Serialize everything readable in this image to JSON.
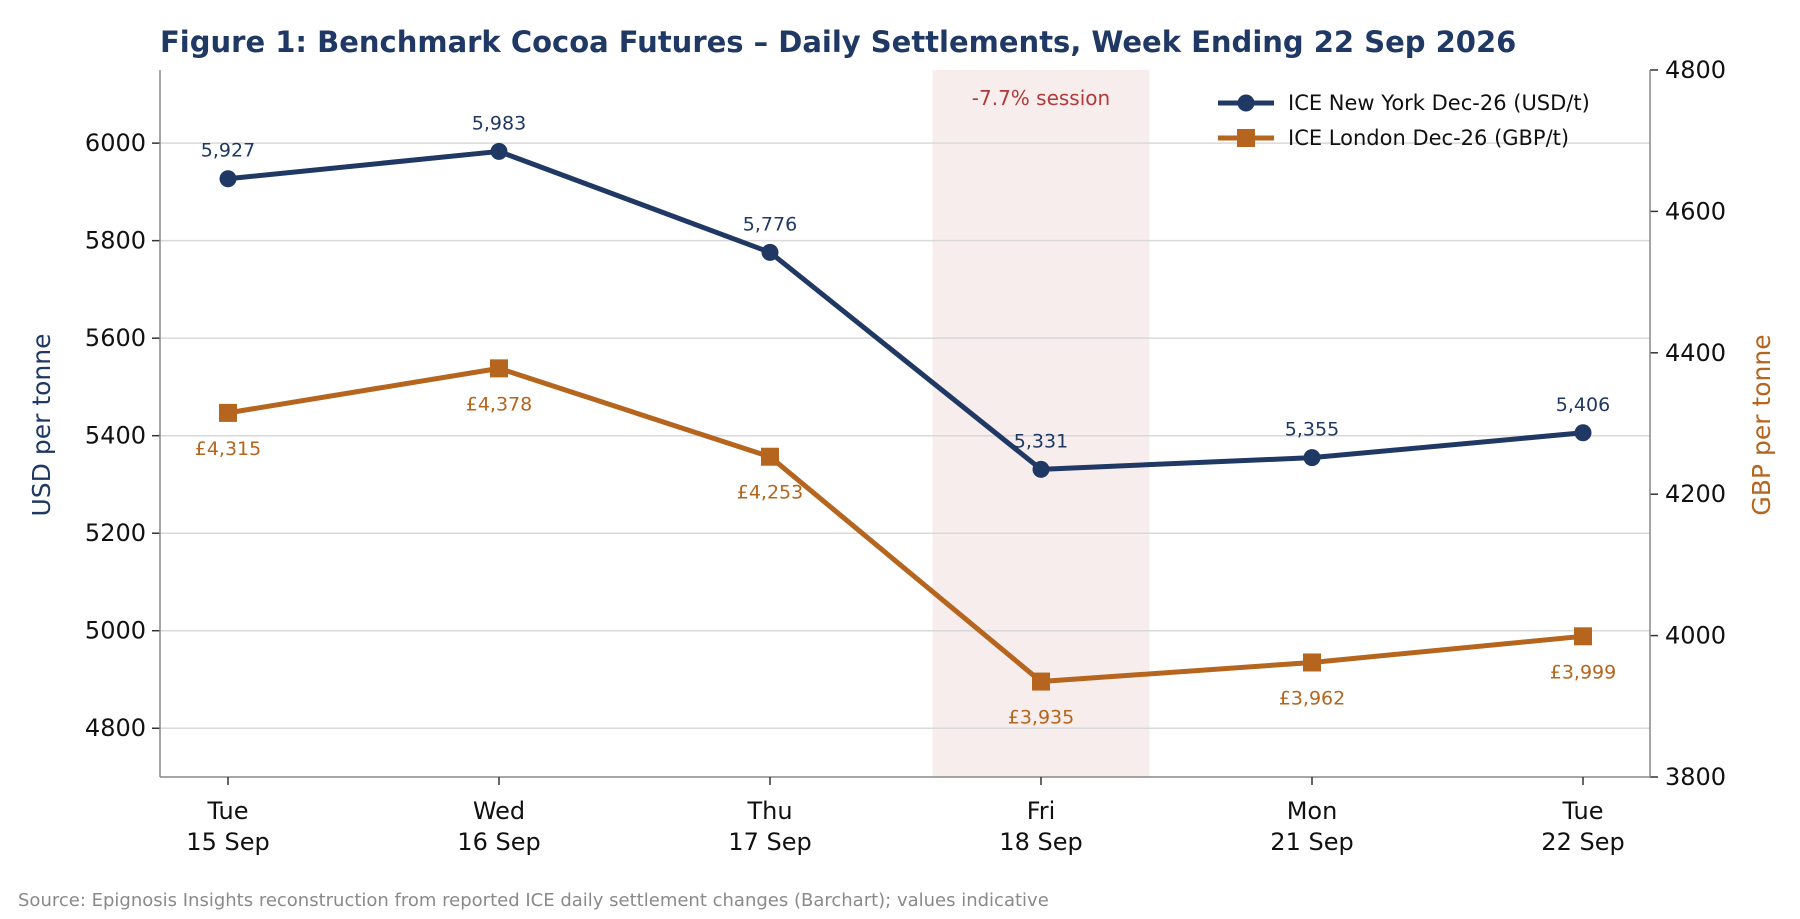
{
  "chart_data": {
    "type": "line",
    "title": "Figure 1: Benchmark Cocoa Futures – Daily Settlements, Week Ending 22 Sep 2026",
    "categories": [
      [
        "Tue",
        "15 Sep"
      ],
      [
        "Wed",
        "16 Sep"
      ],
      [
        "Thu",
        "17 Sep"
      ],
      [
        "Fri",
        "18 Sep"
      ],
      [
        "Mon",
        "21 Sep"
      ],
      [
        "Tue",
        "22 Sep"
      ]
    ],
    "ylabel_left": "USD per tonne",
    "ylabel_right": "GBP per tonne",
    "ylim_left": [
      4700,
      6150
    ],
    "ylim_right": [
      3800,
      4800
    ],
    "yticks_left": [
      4800,
      5000,
      5200,
      5400,
      5600,
      5800,
      6000
    ],
    "yticks_right": [
      3800,
      4000,
      4200,
      4400,
      4600,
      4800
    ],
    "grid": "horizontal",
    "legend_position": "top-right",
    "series": [
      {
        "name": "ICE New York Dec-26 (USD/t)",
        "axis": "left",
        "color": "#1f3864",
        "marker": "circle",
        "values": [
          5927,
          5983,
          5776,
          5331,
          5355,
          5406
        ],
        "labels": [
          "5,927",
          "5,983",
          "5,776",
          "5,331",
          "5,355",
          "5,406"
        ]
      },
      {
        "name": "ICE London Dec-26 (GBP/t)",
        "axis": "right",
        "color": "#b5651d",
        "marker": "square",
        "values": [
          4315,
          4378,
          4253,
          3935,
          3962,
          3999
        ],
        "labels": [
          "£4,315",
          "£4,378",
          "£4,253",
          "£3,935",
          "£3,962",
          "£3,999"
        ]
      }
    ],
    "highlight": {
      "category_index": 3,
      "label": "-7.7% session",
      "color": "#b03a3a"
    },
    "source": "Source: Epignosis Insights reconstruction from reported ICE daily settlement changes (Barchart); values indicative"
  }
}
